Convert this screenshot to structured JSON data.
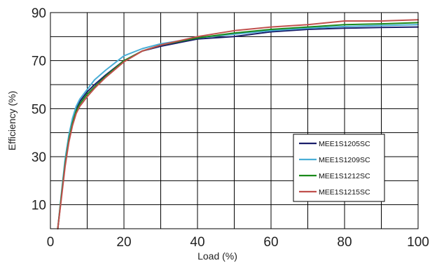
{
  "chart_data": {
    "type": "line",
    "title": "",
    "xlabel": "Load (%)",
    "ylabel": "Efficiency (%)",
    "xlim": [
      0,
      100
    ],
    "ylim": [
      0,
      90
    ],
    "x_ticks": [
      "0",
      "20",
      "40",
      "60",
      "80",
      "100"
    ],
    "x_tick_values": [
      0,
      20,
      40,
      60,
      80,
      100
    ],
    "y_ticks": [
      "10",
      "30",
      "50",
      "70",
      "90"
    ],
    "y_tick_values": [
      10,
      30,
      50,
      70,
      90
    ],
    "grid": true,
    "legend_position": "bottom-right",
    "series": [
      {
        "name": "MEE1S1205SC",
        "color": "#1b1f6b",
        "x": [
          2,
          3,
          4,
          5,
          6,
          7,
          8,
          10,
          12,
          15,
          20,
          25,
          30,
          40,
          50,
          60,
          70,
          80,
          90,
          100
        ],
        "y": [
          0,
          14,
          28,
          38,
          45,
          50,
          53,
          57,
          60,
          64,
          70,
          74,
          76,
          79,
          80,
          82,
          83,
          83.5,
          83.8,
          84
        ]
      },
      {
        "name": "MEE1S1209SC",
        "color": "#4aaed6",
        "x": [
          2,
          3,
          4,
          5,
          6,
          7,
          8,
          10,
          12,
          15,
          20,
          25,
          30,
          40,
          50,
          60,
          70,
          80,
          90,
          100
        ],
        "y": [
          0,
          15,
          29,
          39,
          46,
          51,
          54,
          58,
          62,
          66,
          72,
          75,
          77,
          79.5,
          81,
          82.5,
          83.5,
          84.2,
          84.6,
          85
        ]
      },
      {
        "name": "MEE1S1212SC",
        "color": "#1a8a1a",
        "x": [
          2,
          3,
          4,
          5,
          6,
          7,
          8,
          10,
          12,
          15,
          20,
          25,
          30,
          40,
          50,
          60,
          70,
          80,
          90,
          100
        ],
        "y": [
          0,
          14,
          27,
          37,
          44,
          49,
          52,
          56,
          59,
          63.5,
          70,
          74,
          76.5,
          79.5,
          81.5,
          83,
          84,
          85,
          85.3,
          85.8
        ]
      },
      {
        "name": "MEE1S1215SC",
        "color": "#c0504d",
        "x": [
          2,
          3,
          4,
          5,
          6,
          7,
          8,
          10,
          12,
          15,
          20,
          25,
          30,
          40,
          50,
          60,
          70,
          80,
          90,
          100
        ],
        "y": [
          0,
          13,
          26,
          36,
          43,
          48,
          51,
          55,
          58.5,
          63,
          69.5,
          74,
          76.5,
          80,
          82.5,
          84,
          85,
          86.5,
          86.5,
          87
        ]
      }
    ]
  }
}
